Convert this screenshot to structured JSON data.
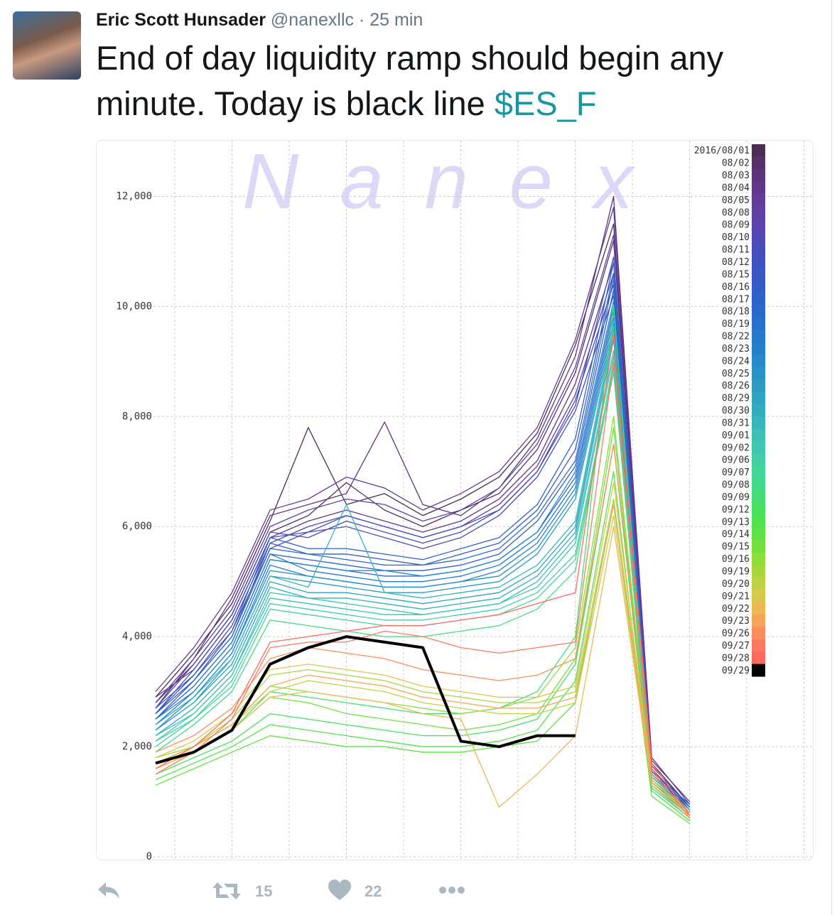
{
  "tweet": {
    "author": "Eric Scott Hunsader",
    "handle": "@nanexllc",
    "time": "25 min",
    "text": "End of day liquidity ramp should begin any minute. Today is black line",
    "link": "$ES_F",
    "retweets": 15,
    "likes": 22
  },
  "chart_data": {
    "type": "line",
    "watermark": "Nanex",
    "categories": [
      null,
      null,
      null,
      null,
      null,
      null,
      null,
      null,
      null,
      null,
      null,
      null,
      null,
      null,
      null
    ],
    "ylim": [
      0,
      13000
    ],
    "yticks": [
      0,
      {
        "value": 2000,
        "label": "2,000"
      },
      {
        "value": 4000,
        "label": "4,000"
      },
      {
        "value": 6000,
        "label": "6,000"
      },
      {
        "value": 8000,
        "label": "8,000"
      },
      {
        "value": 10000,
        "label": "10,000"
      },
      {
        "value": 12000,
        "label": "12,000"
      }
    ],
    "grid": true,
    "series": [
      {
        "name": "2016/08/01",
        "color": "#4b2c55",
        "values": [
          2900,
          3700,
          4600,
          6100,
          7800,
          6400,
          6600,
          6200,
          6500,
          6900,
          7700,
          9300,
          11500,
          1700,
          900
        ]
      },
      {
        "name": "08/02",
        "color": "#573068",
        "values": [
          2800,
          3500,
          4400,
          5900,
          6200,
          6800,
          6300,
          6000,
          6300,
          6600,
          7400,
          8800,
          11200,
          1600,
          850
        ]
      },
      {
        "name": "08/03",
        "color": "#5e3379",
        "values": [
          2700,
          3600,
          4700,
          6200,
          6400,
          6600,
          7900,
          6400,
          6200,
          6700,
          7600,
          9100,
          12000,
          1800,
          950
        ]
      },
      {
        "name": "08/04",
        "color": "#62368a",
        "values": [
          2900,
          3400,
          4300,
          5800,
          6100,
          6300,
          6100,
          5900,
          6100,
          6500,
          7200,
          8600,
          10800,
          1550,
          900
        ]
      },
      {
        "name": "08/05",
        "color": "#643b98",
        "values": [
          3000,
          3800,
          4800,
          6300,
          6500,
          6900,
          6700,
          6300,
          6600,
          7000,
          7800,
          9400,
          11800,
          1750,
          1000
        ]
      },
      {
        "name": "08/08",
        "color": "#6040a3",
        "values": [
          2600,
          3300,
          4200,
          5700,
          6000,
          6200,
          6000,
          5800,
          6000,
          6400,
          7100,
          8400,
          10600,
          1500,
          850
        ]
      },
      {
        "name": "08/09",
        "color": "#5a44ad",
        "values": [
          2800,
          3600,
          4500,
          6000,
          6300,
          6500,
          6400,
          6100,
          6300,
          6700,
          7500,
          8900,
          11300,
          1650,
          900
        ]
      },
      {
        "name": "08/10",
        "color": "#5049b5",
        "values": [
          2700,
          3500,
          4400,
          5900,
          5800,
          6100,
          5900,
          5700,
          5900,
          6300,
          7000,
          8300,
          10400,
          1500,
          800
        ]
      },
      {
        "name": "08/11",
        "color": "#474ebb",
        "values": [
          2500,
          3200,
          4100,
          5600,
          5900,
          6000,
          5800,
          5600,
          5800,
          6200,
          6900,
          8100,
          10200,
          1450,
          850
        ]
      },
      {
        "name": "08/12",
        "color": "#3f52c0",
        "values": [
          2600,
          3400,
          4300,
          5800,
          5900,
          6200,
          6000,
          5800,
          6000,
          6300,
          7000,
          8200,
          10900,
          1550,
          900
        ]
      },
      {
        "name": "08/15",
        "color": "#3857c4",
        "values": [
          2600,
          3200,
          4000,
          5700,
          5500,
          5500,
          5400,
          5300,
          5500,
          5700,
          6300,
          7400,
          10600,
          1500,
          900
        ]
      },
      {
        "name": "08/16",
        "color": "#325cc7",
        "values": [
          2500,
          3100,
          3900,
          5500,
          5400,
          5300,
          5200,
          5200,
          5300,
          5500,
          6100,
          7100,
          10300,
          1450,
          850
        ]
      },
      {
        "name": "08/17",
        "color": "#2d62ca",
        "values": [
          2700,
          3300,
          4100,
          5800,
          5600,
          5600,
          5500,
          5400,
          5600,
          5800,
          6400,
          7600,
          10800,
          1550,
          950
        ]
      },
      {
        "name": "08/18",
        "color": "#2a69cc",
        "values": [
          2400,
          3000,
          3800,
          5400,
          5300,
          5200,
          5100,
          5100,
          5200,
          5400,
          5900,
          6900,
          10000,
          1400,
          800
        ]
      },
      {
        "name": "08/19",
        "color": "#2870cd",
        "values": [
          2600,
          3200,
          4000,
          5600,
          5500,
          5400,
          5300,
          5300,
          5400,
          5600,
          6200,
          7200,
          10500,
          1500,
          900
        ]
      },
      {
        "name": "08/22",
        "color": "#2678cd",
        "values": [
          2500,
          3100,
          3900,
          5500,
          5200,
          5100,
          5000,
          5000,
          5100,
          5300,
          5800,
          6800,
          9900,
          1450,
          850
        ]
      },
      {
        "name": "08/23",
        "color": "#2580cc",
        "values": [
          2300,
          2900,
          3700,
          5300,
          5100,
          5000,
          4900,
          4900,
          5000,
          5200,
          5700,
          6700,
          9800,
          1400,
          800
        ]
      },
      {
        "name": "08/24",
        "color": "#2689ca",
        "values": [
          2500,
          3000,
          3800,
          5400,
          5300,
          5200,
          5200,
          5100,
          5200,
          5400,
          5900,
          7000,
          10100,
          1500,
          900
        ]
      },
      {
        "name": "08/25",
        "color": "#2892c8",
        "values": [
          2400,
          2900,
          3700,
          5200,
          5100,
          5000,
          4900,
          4900,
          5000,
          5100,
          5600,
          6600,
          9700,
          1400,
          850
        ]
      },
      {
        "name": "08/26",
        "color": "#2b9bc6",
        "values": [
          2300,
          2800,
          3600,
          5100,
          5000,
          4900,
          4800,
          4800,
          4900,
          5000,
          5500,
          6500,
          9600,
          1350,
          800
        ]
      },
      {
        "name": "08/29",
        "color": "#2ea4c3",
        "values": [
          2300,
          2800,
          3500,
          5000,
          4800,
          4800,
          4700,
          4600,
          4700,
          4800,
          5200,
          6000,
          9500,
          1400,
          800
        ]
      },
      {
        "name": "08/30",
        "color": "#32adc0",
        "values": [
          2200,
          2700,
          3400,
          4900,
          4700,
          4700,
          4600,
          4500,
          4600,
          4700,
          5100,
          5900,
          9400,
          1350,
          750
        ]
      },
      {
        "name": "08/31",
        "color": "#36b6bc",
        "values": [
          2400,
          2900,
          3600,
          5100,
          4900,
          6400,
          4800,
          4700,
          4800,
          4900,
          5300,
          6100,
          9600,
          1450,
          850
        ]
      },
      {
        "name": "09/01",
        "color": "#3bbfb7",
        "values": [
          2200,
          2600,
          3300,
          4700,
          4600,
          4500,
          4400,
          4400,
          4500,
          4600,
          5000,
          5800,
          9200,
          1300,
          750
        ]
      },
      {
        "name": "09/02",
        "color": "#3fc8b0",
        "values": [
          2100,
          2600,
          3300,
          4800,
          4700,
          4600,
          4500,
          4400,
          4500,
          4600,
          4900,
          5700,
          9100,
          1300,
          700
        ]
      },
      {
        "name": "09/06",
        "color": "#42cfa5",
        "values": [
          2000,
          2500,
          3200,
          4600,
          4500,
          4400,
          4300,
          4300,
          4400,
          4500,
          4800,
          5500,
          8900,
          1250,
          700
        ]
      },
      {
        "name": "09/07",
        "color": "#43d597",
        "values": [
          2100,
          2500,
          3100,
          4500,
          4400,
          4300,
          4200,
          4200,
          4300,
          4400,
          4700,
          5400,
          8800,
          1250,
          700
        ]
      },
      {
        "name": "09/08",
        "color": "#43da87",
        "values": [
          1900,
          2400,
          3000,
          4300,
          4200,
          4100,
          4000,
          4000,
          4100,
          4200,
          4500,
          5200,
          9000,
          1200,
          650
        ]
      },
      {
        "name": "09/09",
        "color": "#44de74",
        "values": [
          1600,
          1900,
          2300,
          3000,
          2900,
          2800,
          2700,
          2600,
          2600,
          2700,
          3000,
          4000,
          10000,
          1300,
          700
        ]
      },
      {
        "name": "09/12",
        "color": "#47e160",
        "values": [
          1500,
          1800,
          2100,
          2600,
          2500,
          2400,
          2300,
          2200,
          2200,
          2300,
          2500,
          3500,
          7500,
          1300,
          700
        ]
      },
      {
        "name": "09/13",
        "color": "#50e24f",
        "values": [
          1400,
          1700,
          2000,
          2400,
          2300,
          2200,
          2100,
          2000,
          2000,
          2100,
          2300,
          3200,
          7000,
          1200,
          650
        ]
      },
      {
        "name": "09/14",
        "color": "#5fe244",
        "values": [
          1300,
          1600,
          1900,
          2200,
          2100,
          2000,
          2000,
          1900,
          1900,
          2000,
          2100,
          2800,
          6500,
          1100,
          600
        ]
      },
      {
        "name": "09/15",
        "color": "#74e03e",
        "values": [
          1600,
          1900,
          2300,
          2900,
          2800,
          2600,
          2500,
          2400,
          2300,
          2400,
          2600,
          3600,
          7800,
          1300,
          700
        ]
      },
      {
        "name": "09/16",
        "color": "#8ddd3c",
        "values": [
          1700,
          2000,
          2400,
          3100,
          3000,
          2900,
          2800,
          2700,
          2600,
          2700,
          2900,
          3800,
          8000,
          1400,
          750
        ]
      },
      {
        "name": "09/19",
        "color": "#a6d83e",
        "values": [
          1800,
          2000,
          2500,
          3300,
          3400,
          3300,
          3200,
          3000,
          2900,
          2800,
          2800,
          3000,
          6500,
          1400,
          800
        ]
      },
      {
        "name": "09/20",
        "color": "#c0d244",
        "values": [
          1700,
          2000,
          2400,
          3000,
          3200,
          3100,
          3000,
          2800,
          2700,
          2600,
          2600,
          2800,
          6200,
          1350,
          750
        ]
      },
      {
        "name": "09/21",
        "color": "#d8c84c",
        "values": [
          1800,
          2100,
          2600,
          3400,
          3500,
          3400,
          3300,
          3100,
          3000,
          2900,
          2900,
          3100,
          6800,
          1400,
          800
        ]
      },
      {
        "name": "09/22",
        "color": "#ebb852",
        "values": [
          1600,
          1900,
          2300,
          2900,
          3000,
          2900,
          2800,
          2600,
          2500,
          900,
          1500,
          2200,
          6000,
          1300,
          700
        ]
      },
      {
        "name": "09/23",
        "color": "#f6a458",
        "values": [
          1700,
          2000,
          2400,
          3100,
          3300,
          3200,
          3100,
          2900,
          2800,
          2700,
          2700,
          2900,
          6400,
          1350,
          750
        ]
      },
      {
        "name": "09/26",
        "color": "#fb8e5c",
        "values": [
          1900,
          2200,
          2700,
          3600,
          3800,
          3700,
          3600,
          3400,
          3300,
          3200,
          3300,
          3600,
          7500,
          1500,
          800
        ]
      },
      {
        "name": "09/27",
        "color": "#fd7a5e",
        "values": [
          1500,
          1900,
          2500,
          3800,
          3900,
          3900,
          4100,
          4000,
          3800,
          3700,
          3800,
          3900,
          9000,
          1600,
          700
        ]
      },
      {
        "name": "09/28",
        "color": "#fe6b5e",
        "values": [
          1600,
          2000,
          2600,
          3900,
          4000,
          4100,
          4200,
          4200,
          4300,
          4400,
          4600,
          4800,
          9500,
          1700,
          750
        ]
      },
      {
        "name": "09/29",
        "color": "#000000",
        "values": [
          1700,
          1900,
          2300,
          3500,
          3800,
          4000,
          3900,
          3800,
          2100,
          2000,
          2200,
          2200,
          null,
          null,
          null
        ]
      }
    ]
  }
}
